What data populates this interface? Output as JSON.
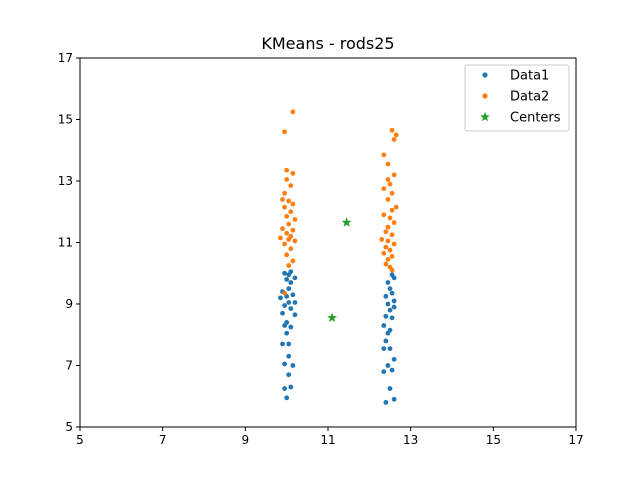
{
  "chart_data": {
    "type": "scatter",
    "title": "KMeans - rods25",
    "xlabel": "",
    "ylabel": "",
    "xlim": [
      5,
      17
    ],
    "ylim": [
      5,
      17
    ],
    "x_ticks": [
      5,
      7,
      9,
      11,
      13,
      15,
      17
    ],
    "y_ticks": [
      5,
      7,
      9,
      11,
      13,
      15,
      17
    ],
    "grid": false,
    "legend_position": "top-right",
    "series": [
      {
        "name": "Data1",
        "color": "#1f77b4",
        "marker": "circle",
        "points": [
          [
            10.0,
            5.95
          ],
          [
            9.95,
            6.25
          ],
          [
            10.1,
            6.3
          ],
          [
            10.05,
            6.7
          ],
          [
            10.15,
            7.0
          ],
          [
            9.95,
            7.05
          ],
          [
            10.05,
            7.3
          ],
          [
            9.9,
            7.7
          ],
          [
            10.05,
            7.7
          ],
          [
            10.0,
            8.05
          ],
          [
            10.1,
            8.25
          ],
          [
            9.95,
            8.3
          ],
          [
            10.0,
            8.4
          ],
          [
            10.2,
            8.65
          ],
          [
            9.9,
            8.7
          ],
          [
            10.1,
            8.85
          ],
          [
            9.95,
            8.95
          ],
          [
            10.05,
            9.05
          ],
          [
            10.2,
            9.05
          ],
          [
            9.85,
            9.2
          ],
          [
            10.0,
            9.25
          ],
          [
            10.15,
            9.3
          ],
          [
            9.9,
            9.4
          ],
          [
            10.05,
            9.5
          ],
          [
            10.1,
            9.7
          ],
          [
            10.0,
            9.8
          ],
          [
            10.2,
            9.85
          ],
          [
            10.05,
            9.95
          ],
          [
            9.95,
            10.0
          ],
          [
            10.1,
            10.05
          ],
          [
            12.4,
            5.8
          ],
          [
            12.6,
            5.9
          ],
          [
            12.5,
            6.25
          ],
          [
            12.35,
            6.8
          ],
          [
            12.55,
            6.85
          ],
          [
            12.45,
            7.0
          ],
          [
            12.6,
            7.2
          ],
          [
            12.35,
            7.55
          ],
          [
            12.5,
            7.55
          ],
          [
            12.4,
            7.8
          ],
          [
            12.45,
            8.05
          ],
          [
            12.5,
            8.15
          ],
          [
            12.35,
            8.3
          ],
          [
            12.55,
            8.55
          ],
          [
            12.4,
            8.6
          ],
          [
            12.5,
            8.8
          ],
          [
            12.6,
            8.9
          ],
          [
            12.45,
            9.0
          ],
          [
            12.6,
            9.1
          ],
          [
            12.4,
            9.25
          ],
          [
            12.55,
            9.35
          ],
          [
            12.5,
            9.5
          ],
          [
            12.45,
            9.7
          ],
          [
            12.6,
            9.85
          ],
          [
            12.55,
            9.95
          ]
        ]
      },
      {
        "name": "Data2",
        "color": "#ff7f0e",
        "marker": "circle",
        "points": [
          [
            10.15,
            15.25
          ],
          [
            9.95,
            14.6
          ],
          [
            10.0,
            13.35
          ],
          [
            10.15,
            13.25
          ],
          [
            10.0,
            13.05
          ],
          [
            10.1,
            12.85
          ],
          [
            9.95,
            12.6
          ],
          [
            9.9,
            12.4
          ],
          [
            10.05,
            12.35
          ],
          [
            10.15,
            12.25
          ],
          [
            9.95,
            12.15
          ],
          [
            10.1,
            12.0
          ],
          [
            10.0,
            11.85
          ],
          [
            10.2,
            11.75
          ],
          [
            10.05,
            11.6
          ],
          [
            9.9,
            11.45
          ],
          [
            10.15,
            11.4
          ],
          [
            10.0,
            11.3
          ],
          [
            10.1,
            11.2
          ],
          [
            9.85,
            11.15
          ],
          [
            10.05,
            11.1
          ],
          [
            10.2,
            11.05
          ],
          [
            9.95,
            10.95
          ],
          [
            10.1,
            10.8
          ],
          [
            10.0,
            10.6
          ],
          [
            10.15,
            10.4
          ],
          [
            10.05,
            10.25
          ],
          [
            9.95,
            9.35
          ],
          [
            12.55,
            14.65
          ],
          [
            12.65,
            14.5
          ],
          [
            12.6,
            14.35
          ],
          [
            12.35,
            13.85
          ],
          [
            12.45,
            13.55
          ],
          [
            12.6,
            13.2
          ],
          [
            12.45,
            13.05
          ],
          [
            12.5,
            12.9
          ],
          [
            12.35,
            12.75
          ],
          [
            12.55,
            12.6
          ],
          [
            12.45,
            12.4
          ],
          [
            12.65,
            12.15
          ],
          [
            12.55,
            12.05
          ],
          [
            12.35,
            11.9
          ],
          [
            12.5,
            11.8
          ],
          [
            12.6,
            11.65
          ],
          [
            12.45,
            11.5
          ],
          [
            12.4,
            11.35
          ],
          [
            12.55,
            11.25
          ],
          [
            12.3,
            11.1
          ],
          [
            12.45,
            11.05
          ],
          [
            12.6,
            10.95
          ],
          [
            12.4,
            10.85
          ],
          [
            12.5,
            10.75
          ],
          [
            12.35,
            10.65
          ],
          [
            12.55,
            10.55
          ],
          [
            12.45,
            10.45
          ],
          [
            12.4,
            10.3
          ],
          [
            12.5,
            10.2
          ],
          [
            12.55,
            10.1
          ]
        ]
      },
      {
        "name": "Centers",
        "color": "#2ca02c",
        "marker": "star",
        "points": [
          [
            11.45,
            11.65
          ],
          [
            11.1,
            8.55
          ]
        ]
      }
    ]
  }
}
